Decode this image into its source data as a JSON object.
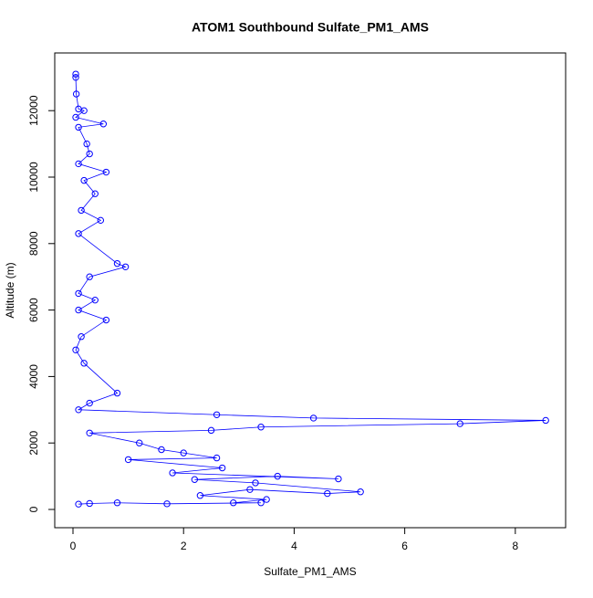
{
  "chart_data": {
    "type": "line",
    "title": "ATOM1 Southbound Sulfate_PM1_AMS",
    "x_label": "Sulfate_PM1_AMS",
    "y_label": "Altitude (m)",
    "xlim": [
      -0.33,
      8.91
    ],
    "ylim": [
      -549,
      13736
    ],
    "xticks": [
      0,
      2,
      4,
      6,
      8
    ],
    "yticks": [
      0,
      2000,
      4000,
      6000,
      8000,
      10000,
      12000
    ],
    "series": [
      {
        "color": "#0000ff",
        "x": [
          0.05,
          0.05,
          0.06,
          0.1,
          0.2,
          0.05,
          0.55,
          0.1,
          0.25,
          0.3,
          0.1,
          0.6,
          0.2,
          0.4,
          0.15,
          0.5,
          0.1,
          0.8,
          0.95,
          0.3,
          0.1,
          0.4,
          0.1,
          0.6,
          0.15,
          0.05,
          0.2,
          0.8,
          0.3,
          0.1,
          2.6,
          4.35,
          8.55,
          7.0,
          3.4,
          2.5,
          0.3,
          1.2,
          1.6,
          2.0,
          2.6,
          1.0,
          2.7,
          1.8,
          4.8,
          3.7,
          2.2,
          3.3,
          5.2,
          4.6,
          3.2,
          2.3,
          3.5,
          2.9,
          3.4,
          1.7,
          0.8,
          0.3,
          0.1
        ],
        "values": [
          13100,
          13000,
          12500,
          12050,
          12000,
          11800,
          11600,
          11500,
          11000,
          10700,
          10400,
          10150,
          9900,
          9500,
          9000,
          8700,
          8300,
          7400,
          7300,
          7000,
          6500,
          6300,
          6000,
          5700,
          5200,
          4800,
          4400,
          3500,
          3200,
          3000,
          2850,
          2750,
          2680,
          2580,
          2480,
          2380,
          2300,
          2000,
          1800,
          1700,
          1550,
          1500,
          1250,
          1100,
          920,
          1000,
          900,
          800,
          530,
          480,
          600,
          420,
          300,
          200,
          200,
          170,
          200,
          180,
          160
        ]
      }
    ]
  }
}
